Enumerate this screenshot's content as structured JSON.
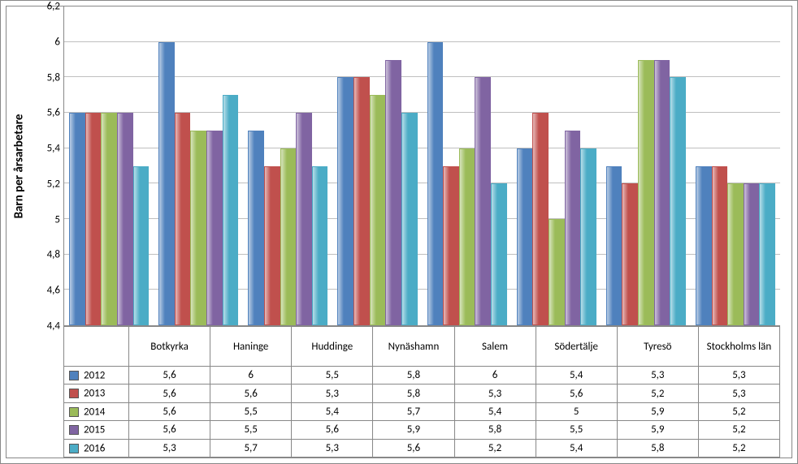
{
  "chart": {
    "type": "bar",
    "y_axis": {
      "label": "Barn per årsarbetare",
      "label_fontsize": 15,
      "label_fontweight": "bold",
      "min": 4.4,
      "max": 6.2,
      "tick_step": 0.2,
      "ticks": [
        "4,4",
        "4,6",
        "4,8",
        "5",
        "5,2",
        "5,4",
        "5,6",
        "5,8",
        "6",
        "6,2"
      ],
      "tick_fontsize": 13,
      "grid_color": "#bfbfbf"
    },
    "background_color": "#ffffff",
    "categories": [
      "Botkyrka",
      "Haninge",
      "Huddinge",
      "Nynäshamn",
      "Salem",
      "Södertälje",
      "Tyresö",
      "Stockholms län"
    ],
    "series": [
      {
        "name": "2012",
        "color": "#4f81bd",
        "values": [
          5.6,
          6.0,
          5.5,
          5.8,
          6.0,
          5.4,
          5.3,
          5.3
        ],
        "display": [
          "5,6",
          "6",
          "5,5",
          "5,8",
          "6",
          "5,4",
          "5,3",
          "5,3"
        ]
      },
      {
        "name": "2013",
        "color": "#c0504d",
        "values": [
          5.6,
          5.6,
          5.3,
          5.8,
          5.3,
          5.6,
          5.2,
          5.3
        ],
        "display": [
          "5,6",
          "5,6",
          "5,3",
          "5,8",
          "5,3",
          "5,6",
          "5,2",
          "5,3"
        ]
      },
      {
        "name": "2014",
        "color": "#9bbb59",
        "values": [
          5.6,
          5.5,
          5.4,
          5.7,
          5.4,
          5.0,
          5.9,
          5.2
        ],
        "display": [
          "5,6",
          "5,5",
          "5,4",
          "5,7",
          "5,4",
          "5",
          "5,9",
          "5,2"
        ]
      },
      {
        "name": "2015",
        "color": "#8064a2",
        "values": [
          5.6,
          5.5,
          5.6,
          5.9,
          5.8,
          5.5,
          5.9,
          5.2
        ],
        "display": [
          "5,6",
          "5,5",
          "5,6",
          "5,9",
          "5,8",
          "5,5",
          "5,9",
          "5,2"
        ]
      },
      {
        "name": "2016",
        "color": "#4bacc6",
        "values": [
          5.3,
          5.7,
          5.3,
          5.6,
          5.2,
          5.4,
          5.8,
          5.2
        ],
        "display": [
          "5,3",
          "5,7",
          "5,3",
          "5,6",
          "5,2",
          "5,4",
          "5,8",
          "5,2"
        ]
      }
    ]
  }
}
